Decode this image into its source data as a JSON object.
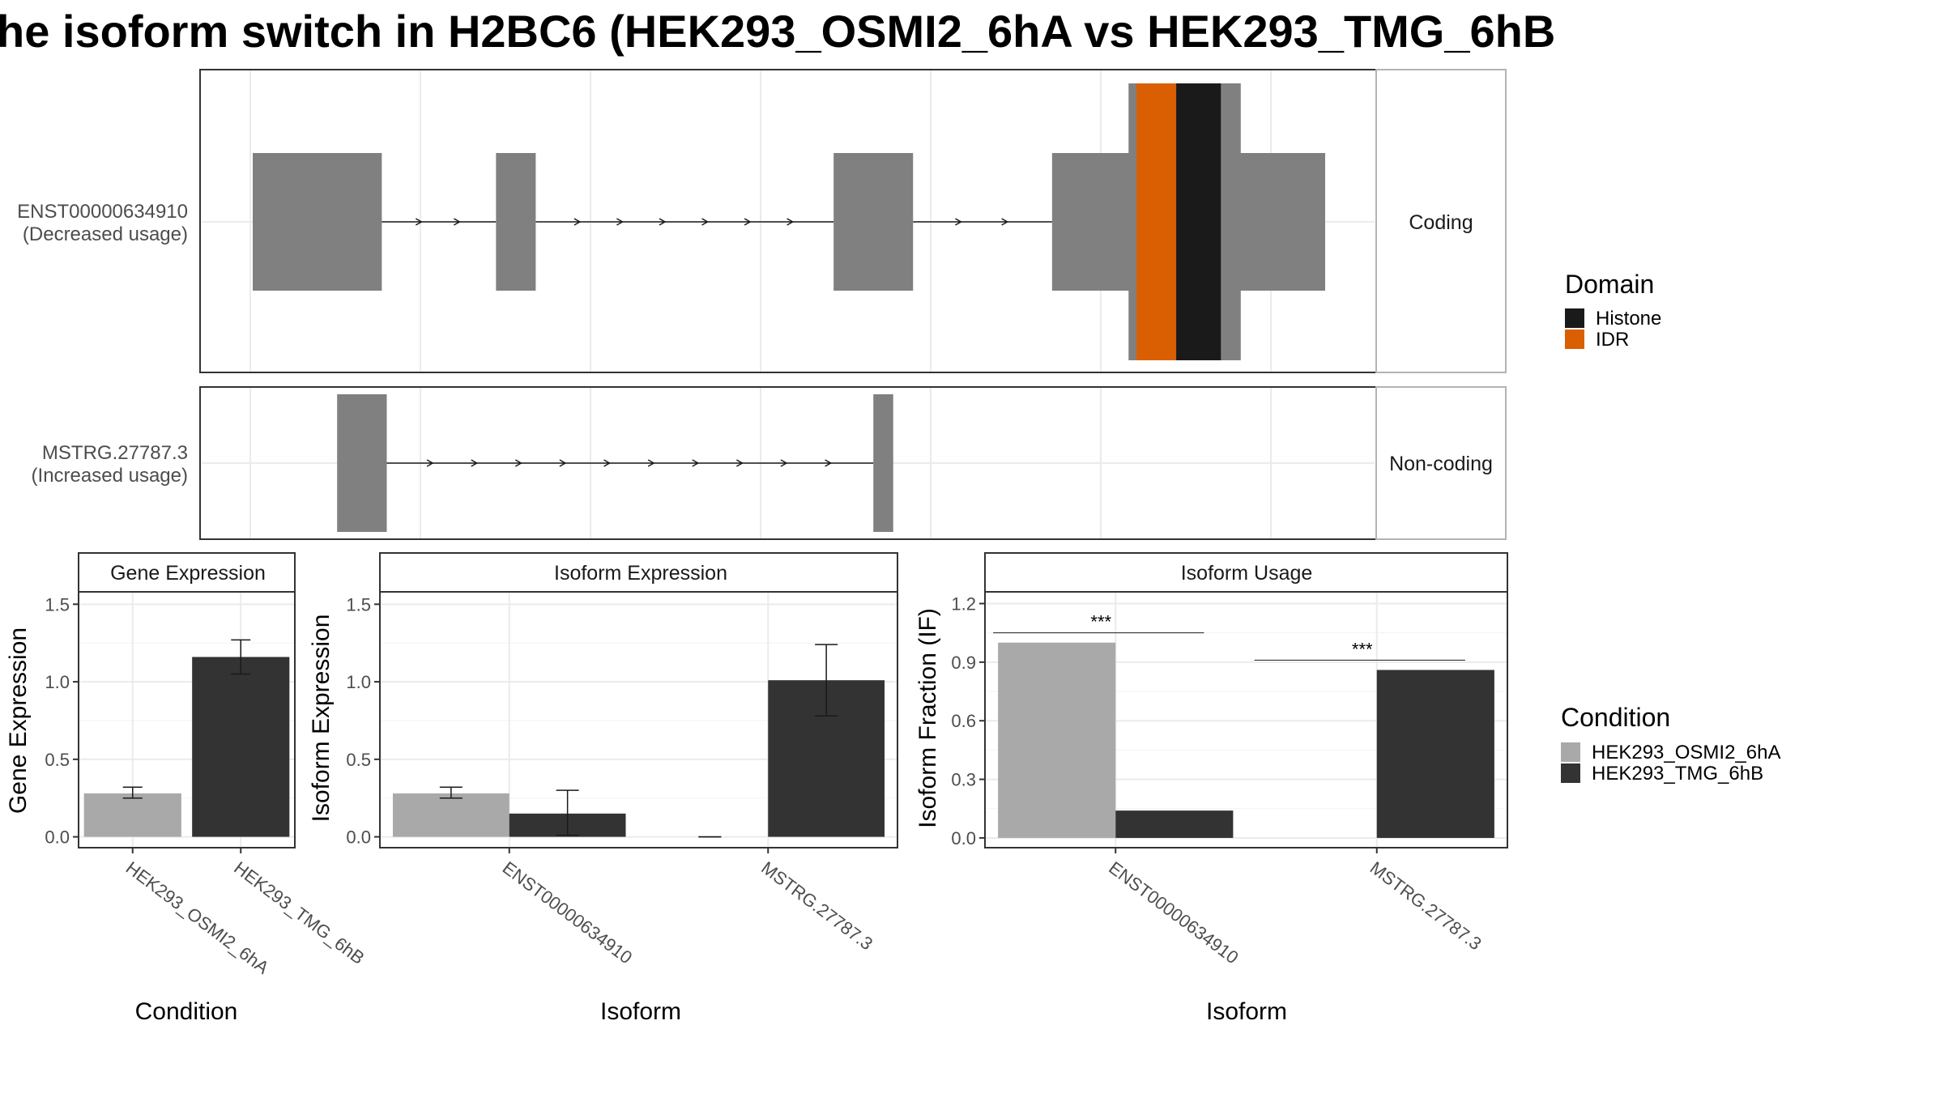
{
  "title": "he isoform switch in H2BC6 (HEK293_OSMI2_6hA vs HEK293_TMG_6hB",
  "colors": {
    "HEK293_OSMI2_6hA": "#a9a9a9",
    "HEK293_TMG_6hB": "#333333",
    "exon": "#808080",
    "Histone": "#1a1a1a",
    "IDR": "#d95f02"
  },
  "transcripts": [
    {
      "id": "ENST00000634910",
      "usage": "(Decreased usage)",
      "strip": "Coding",
      "exons": [
        [
          0.0,
          1.3
        ],
        [
          2.45,
          2.85
        ],
        [
          5.85,
          6.65
        ],
        [
          8.05,
          10.8
        ]
      ],
      "domains": [
        {
          "name": "IDR",
          "start": 8.9,
          "end": 9.3
        },
        {
          "name": "Histone",
          "start": 9.3,
          "end": 9.75
        }
      ]
    },
    {
      "id": "MSTRG.27787.3",
      "usage": "(Increased usage)",
      "strip": "Non-coding",
      "exons": [
        [
          0.85,
          1.35
        ],
        [
          6.25,
          6.45
        ]
      ]
    }
  ],
  "legend_domain": {
    "title": "Domain",
    "items": [
      "Histone",
      "IDR"
    ]
  },
  "legend_condition": {
    "title": "Condition",
    "items": [
      "HEK293_OSMI2_6hA",
      "HEK293_TMG_6hB"
    ]
  },
  "chart_data": [
    {
      "type": "bar",
      "title": "Gene Expression",
      "xlabel": "Condition",
      "ylabel": "Gene Expression",
      "categories": [
        "HEK293_OSMI2_6hA",
        "HEK293_TMG_6hB"
      ],
      "values": [
        0.28,
        1.16
      ],
      "errors": [
        [
          0.25,
          0.32
        ],
        [
          1.05,
          1.27
        ]
      ],
      "ylim": [
        -0.07,
        1.58
      ],
      "yticks": [
        0.0,
        0.5,
        1.0,
        1.5
      ],
      "ytick_labels": [
        "0.0",
        "0.5",
        "1.0",
        "1.5"
      ]
    },
    {
      "type": "bar",
      "title": "Isoform Expression",
      "xlabel": "Isoform",
      "ylabel": "Isoform Expression",
      "categories": [
        "ENST00000634910",
        "MSTRG.27787.3"
      ],
      "series": [
        {
          "name": "HEK293_OSMI2_6hA",
          "values": [
            0.28,
            0.0
          ],
          "errors": [
            [
              0.25,
              0.32
            ],
            [
              0.0,
              0.0
            ]
          ]
        },
        {
          "name": "HEK293_TMG_6hB",
          "values": [
            0.15,
            1.01
          ],
          "errors": [
            [
              0.01,
              0.3
            ],
            [
              0.78,
              1.24
            ]
          ]
        }
      ],
      "ylim": [
        -0.07,
        1.58
      ],
      "yticks": [
        0.0,
        0.5,
        1.0,
        1.5
      ],
      "ytick_labels": [
        "0.0",
        "0.5",
        "1.0",
        "1.5"
      ]
    },
    {
      "type": "bar",
      "title": "Isoform Usage",
      "xlabel": "Isoform",
      "ylabel": "Isoform Fraction (IF)",
      "categories": [
        "ENST00000634910",
        "MSTRG.27787.3"
      ],
      "series": [
        {
          "name": "HEK293_OSMI2_6hA",
          "values": [
            1.0,
            0.0
          ]
        },
        {
          "name": "HEK293_TMG_6hB",
          "values": [
            0.14,
            0.86
          ]
        }
      ],
      "significance": [
        {
          "label": "***",
          "y": 1.05
        },
        {
          "label": "***",
          "y": 0.91
        }
      ],
      "ylim": [
        -0.05,
        1.26
      ],
      "yticks": [
        0.0,
        0.3,
        0.6,
        0.9,
        1.2
      ],
      "ytick_labels": [
        "0.0",
        "0.3",
        "0.6",
        "0.9",
        "1.2"
      ]
    }
  ]
}
